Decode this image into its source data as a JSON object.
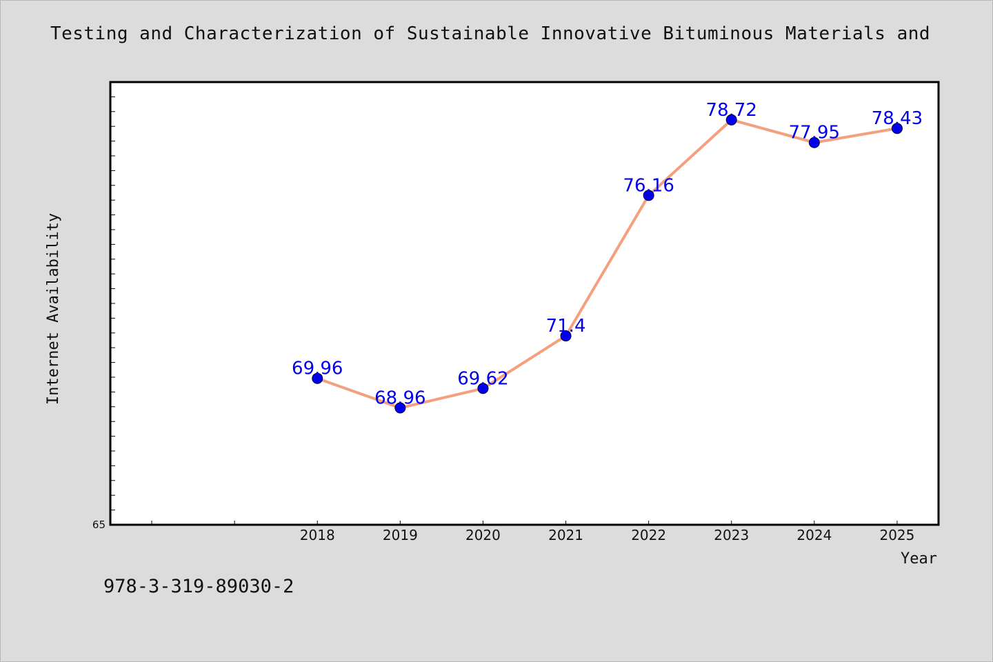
{
  "chart_data": {
    "type": "line",
    "title": "Testing and Characterization of Sustainable Innovative Bituminous Materials and",
    "xlabel": "Year",
    "ylabel": "Internet Availability",
    "categories": [
      "2018",
      "2019",
      "2020",
      "2021",
      "2022",
      "2023",
      "2024",
      "2025"
    ],
    "x": [
      2018,
      2019,
      2020,
      2021,
      2022,
      2023,
      2024,
      2025
    ],
    "values": [
      69.96,
      68.96,
      69.62,
      71.4,
      76.16,
      78.72,
      77.95,
      78.43
    ],
    "value_labels": [
      "69.96",
      "68.96",
      "69.62",
      "71.4",
      "76.16",
      "78.72",
      "77.95",
      "78.43"
    ],
    "xlim": [
      2015.5,
      2025.5
    ],
    "ylim": [
      65,
      80
    ],
    "y_tick_labels": [
      "65"
    ],
    "grid": false,
    "line_color": "#f4a07e",
    "marker_color": "#0000ee",
    "label_color": "#0000ee"
  },
  "footer": {
    "isbn": "978-3-319-89030-2"
  }
}
